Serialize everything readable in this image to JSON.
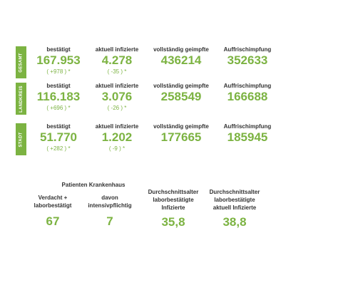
{
  "colors": {
    "accent": "#7cb342",
    "label_text": "#333333",
    "background": "#ffffff",
    "badge_text": "#ffffff"
  },
  "rows": [
    {
      "label": "GESAMT",
      "confirmed_label": "bestätigt",
      "confirmed_value": "167.953",
      "confirmed_change": "( +978 ) *",
      "active_label": "aktuell infizierte",
      "active_value": "4.278",
      "active_change": "( -35 ) *",
      "vaccinated_label": "vollständig geimpfte",
      "vaccinated_value": "436214",
      "booster_label": "Auffrischimpfung",
      "booster_value": "352633"
    },
    {
      "label": "LANDKREIS",
      "confirmed_label": "bestätigt",
      "confirmed_value": "116.183",
      "confirmed_change": "( +696 ) *",
      "active_label": "aktuell infizierte",
      "active_value": "3.076",
      "active_change": "( -26 ) *",
      "vaccinated_label": "vollständig geimpfte",
      "vaccinated_value": "258549",
      "booster_label": "Auffrischimpfung",
      "booster_value": "166688"
    },
    {
      "label": "STADT",
      "confirmed_label": "bestätigt",
      "confirmed_value": "51.770",
      "confirmed_change": "( +282 ) *",
      "active_label": "aktuell infizierte",
      "active_value": "1.202",
      "active_change": "( -9 ) *",
      "vaccinated_label": "vollständig geimpfte",
      "vaccinated_value": "177665",
      "booster_label": "Auffrischimpfung",
      "booster_value": "185945"
    }
  ],
  "hospital": {
    "title": "Patienten Krankenhaus",
    "suspected_label": "Verdacht +\nlaborbestätigt",
    "suspected_value": "67",
    "icu_label": "davon\nintensivpflichtig",
    "icu_value": "7"
  },
  "age": {
    "confirmed_label": "Durchschnittsalter\nlaborbestätigte\nInfizierte",
    "confirmed_value": "35,8",
    "active_label": "Durchschnittsalter\nlaborbestätigte\naktuell Infizierte",
    "active_value": "38,8"
  }
}
